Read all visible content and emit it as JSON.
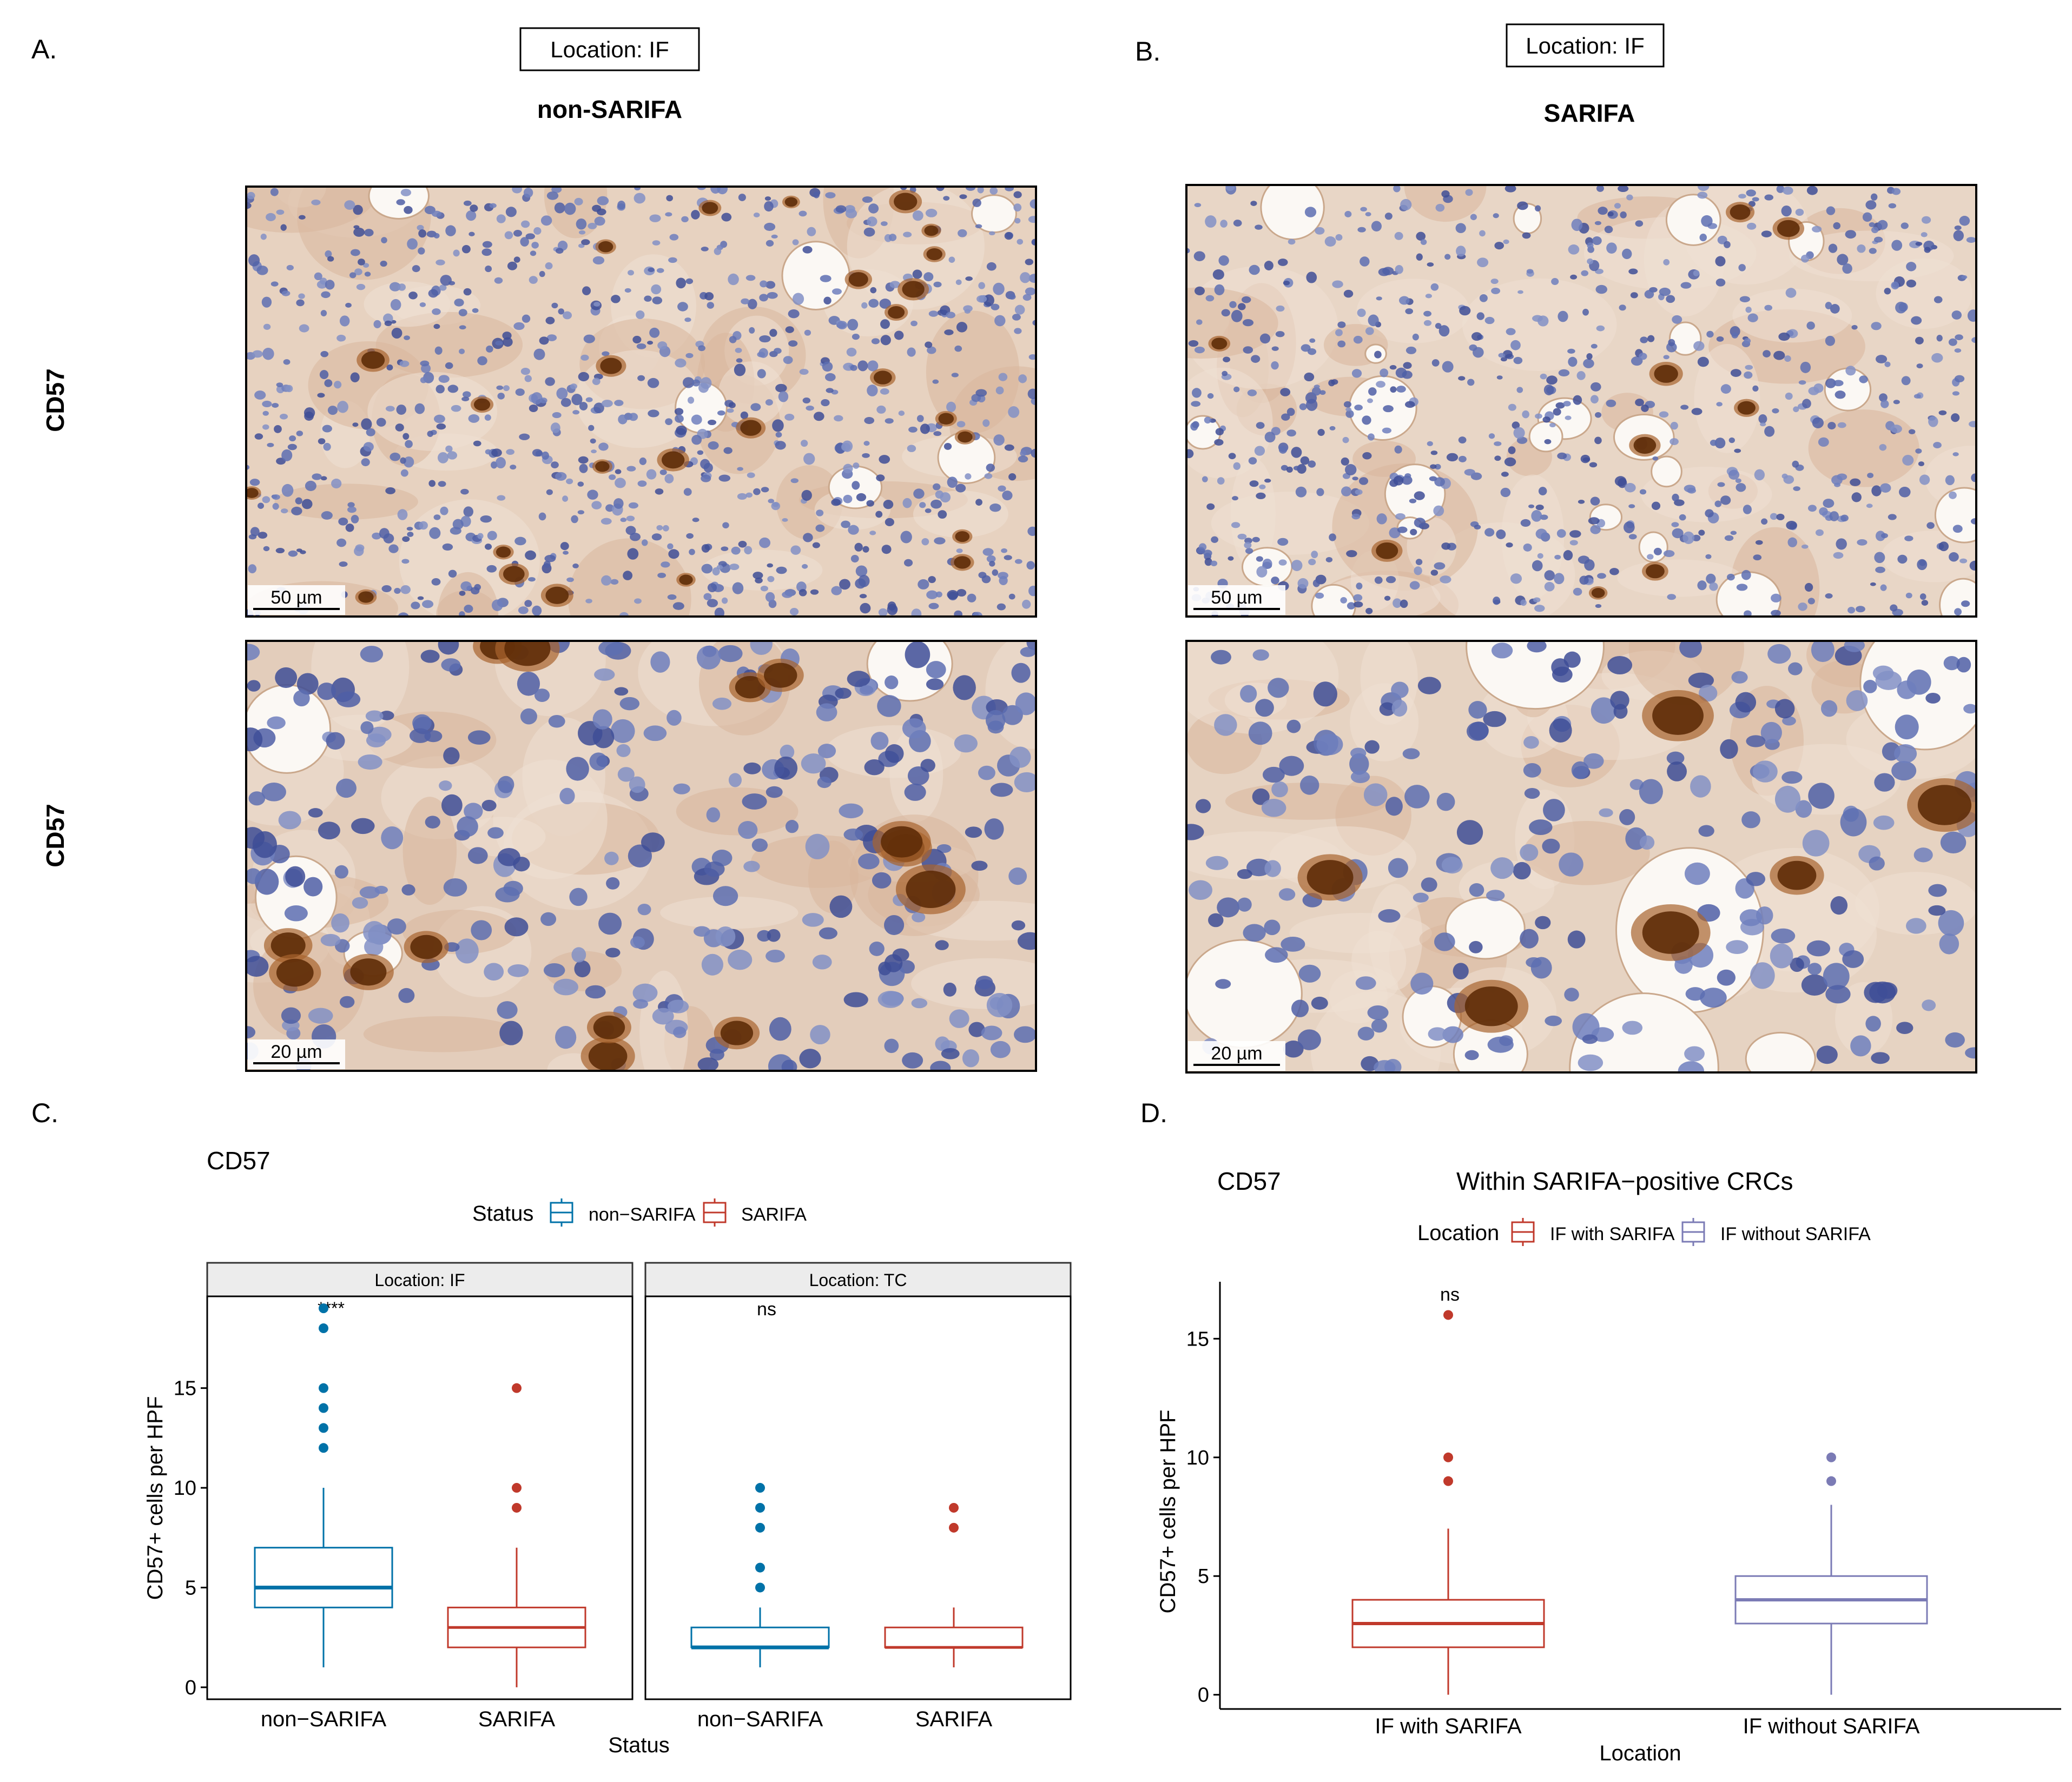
{
  "panel_labels": {
    "a": "A.",
    "b": "B.",
    "c": "C.",
    "d": "D."
  },
  "panel_a": {
    "location_box": "Location: IF",
    "status_title": "non-SARIFA",
    "row_label_top": "CD57",
    "row_label_bottom": "CD57",
    "scale_top": "50 µm",
    "scale_bottom": "20 µm"
  },
  "panel_b": {
    "location_box": "Location: IF",
    "status_title": "SARIFA",
    "scale_top": "50 µm",
    "scale_bottom": "20 µm"
  },
  "colors": {
    "non_sarifa": "#0072A8",
    "sarifa": "#C0392B",
    "if_without_sarifa": "#7B7BB5",
    "stain_brown": "#7a3f12",
    "nuclei_blue": "#5d6fb2"
  },
  "chart_data": [
    {
      "type": "box",
      "title": "CD57",
      "xlabel": "Status",
      "ylabel": "CD57+ cells per HPF",
      "ylim": [
        -0.6,
        19.6
      ],
      "yticks": [
        0,
        5,
        10,
        15
      ],
      "legend": {
        "title": "Status",
        "position": "top",
        "entries": [
          "non−SARIFA",
          "SARIFA"
        ]
      },
      "categories": [
        "non−SARIFA",
        "SARIFA"
      ],
      "facets": [
        {
          "label": "Location: IF",
          "annotation": "****",
          "boxes": [
            {
              "category": "non−SARIFA",
              "q1": 4,
              "median": 5,
              "q3": 7,
              "whisker_low": 1,
              "whisker_high": 10,
              "outliers": [
                12,
                13,
                14,
                15,
                18,
                19
              ]
            },
            {
              "category": "SARIFA",
              "q1": 2,
              "median": 3,
              "q3": 4,
              "whisker_low": 0,
              "whisker_high": 7,
              "outliers": [
                9,
                10,
                15
              ]
            }
          ]
        },
        {
          "label": "Location: TC",
          "annotation": "ns",
          "boxes": [
            {
              "category": "non−SARIFA",
              "q1": 2,
              "median": 2,
              "q3": 3,
              "whisker_low": 1,
              "whisker_high": 4,
              "outliers": [
                5,
                6,
                8,
                9,
                10
              ]
            },
            {
              "category": "SARIFA",
              "q1": 2,
              "median": 2,
              "q3": 3,
              "whisker_low": 1,
              "whisker_high": 4,
              "outliers": [
                8,
                9
              ]
            }
          ]
        }
      ]
    },
    {
      "type": "box",
      "title": "CD57",
      "subtitle": "Within SARIFA−positive CRCs",
      "xlabel": "Location",
      "ylabel": "CD57+ cells per HPF",
      "ylim": [
        -0.6,
        17.4
      ],
      "yticks": [
        0,
        5,
        10,
        15
      ],
      "legend": {
        "title": "Location",
        "position": "top",
        "entries": [
          "IF with SARIFA",
          "IF without SARIFA"
        ]
      },
      "categories": [
        "IF with SARIFA",
        "IF without SARIFA"
      ],
      "annotation": "ns",
      "boxes": [
        {
          "category": "IF with SARIFA",
          "q1": 2,
          "median": 3,
          "q3": 4,
          "whisker_low": 0,
          "whisker_high": 7,
          "outliers": [
            9,
            10,
            16
          ]
        },
        {
          "category": "IF without SARIFA",
          "q1": 3,
          "median": 4,
          "q3": 5,
          "whisker_low": 0,
          "whisker_high": 8,
          "outliers": [
            9,
            10
          ]
        }
      ]
    }
  ]
}
